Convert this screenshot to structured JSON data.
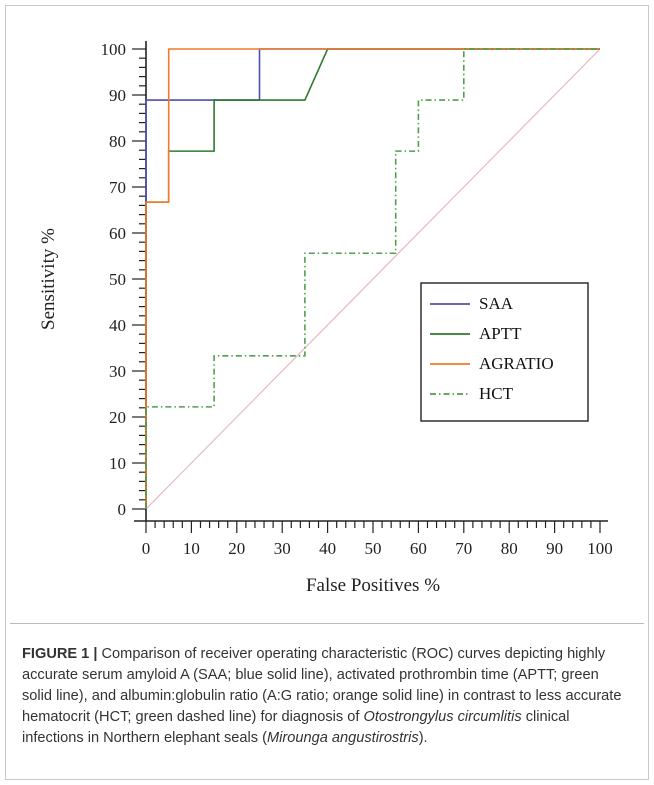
{
  "figure": {
    "caption": {
      "label": "FIGURE 1 |",
      "part1": " Comparison of receiver operating characteristic (ROC) curves depicting highly accurate serum amyloid A (SAA; blue solid line), activated prothrombin time (APTT; green solid line), and albumin:globulin ratio (A:G ratio; orange solid line) in contrast to less accurate hematocrit (HCT; green dashed line) for diagnosis of ",
      "italic1": "Otostrongylus circumlitis",
      "part2": " clinical infections in Northern elephant seals (",
      "italic2": "Mirounga angustirostris",
      "part3": ")."
    }
  },
  "chart_data": {
    "type": "line",
    "title": "",
    "xlabel": "False Positives %",
    "ylabel": "Sensitivity %",
    "xlim": [
      0,
      100
    ],
    "ylim": [
      0,
      100
    ],
    "x_ticks": [
      0,
      10,
      20,
      30,
      40,
      50,
      60,
      70,
      80,
      90,
      100
    ],
    "y_ticks": [
      0,
      10,
      20,
      30,
      40,
      50,
      60,
      70,
      80,
      90,
      100
    ],
    "x_minor_step": 2,
    "y_minor_step": 2,
    "grid": false,
    "legend_position": "bottom-right",
    "reference_line": {
      "x": [
        0,
        100
      ],
      "y": [
        0,
        100
      ],
      "color": "#e8b7c2"
    },
    "series": [
      {
        "name": "SAA",
        "color": "#4f4fb0",
        "style": "solid",
        "x": [
          0,
          0,
          0,
          25,
          25,
          100
        ],
        "y": [
          0,
          66.7,
          88.9,
          88.9,
          100,
          100
        ]
      },
      {
        "name": "APTT",
        "color": "#2f7a2f",
        "style": "solid",
        "x": [
          0,
          0,
          5,
          5,
          15,
          15,
          35,
          40,
          100
        ],
        "y": [
          0,
          66.7,
          66.7,
          77.8,
          77.8,
          88.9,
          88.9,
          100,
          100
        ]
      },
      {
        "name": "AGRATIO",
        "color": "#f07a2a",
        "style": "solid",
        "x": [
          0,
          0,
          5,
          5,
          100
        ],
        "y": [
          0,
          66.7,
          66.7,
          100,
          100
        ]
      },
      {
        "name": "HCT",
        "color": "#4f9f4f",
        "style": "dashdot",
        "x": [
          0,
          0,
          15,
          15,
          35,
          35,
          55,
          55,
          60,
          60,
          70,
          70,
          100
        ],
        "y": [
          0,
          22.2,
          22.2,
          33.3,
          33.3,
          55.6,
          55.6,
          77.8,
          77.8,
          88.9,
          88.9,
          100,
          100
        ]
      }
    ]
  }
}
